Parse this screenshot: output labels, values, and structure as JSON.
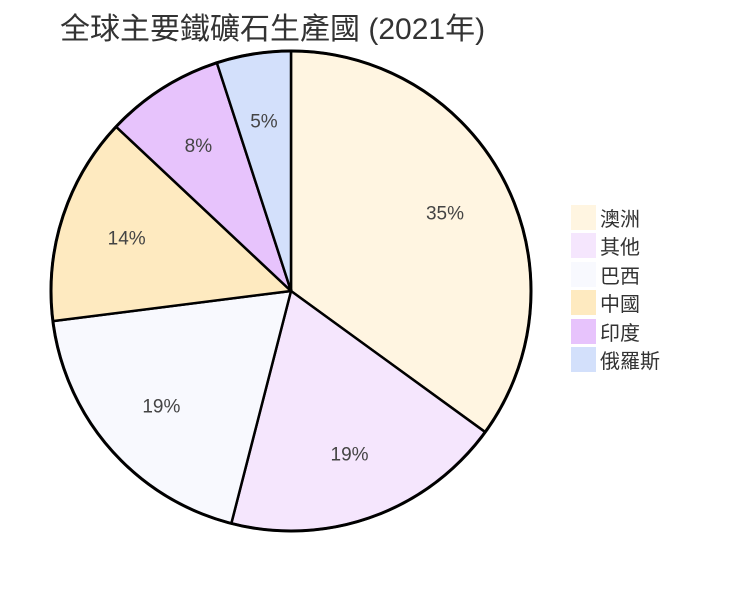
{
  "chart_data": {
    "type": "pie",
    "title": "全球主要鐵礦石生產國 (2021年)",
    "categories": [
      "澳洲",
      "其他",
      "巴西",
      "中國",
      "印度",
      "俄羅斯"
    ],
    "values": [
      35,
      19,
      19,
      14,
      8,
      5
    ],
    "labels": [
      "35%",
      "19%",
      "19%",
      "14%",
      "8%",
      "5%"
    ],
    "colors": [
      "#FFF5E1",
      "#F5E6FD",
      "#F8F9FE",
      "#FEEAC0",
      "#E7C3FC",
      "#D3E0FB"
    ],
    "start_angle": "12 o'clock, clockwise",
    "legend_position": "right"
  },
  "legend": {
    "items": [
      {
        "label": "澳洲",
        "color": "#FFF5E1"
      },
      {
        "label": "其他",
        "color": "#F5E6FD"
      },
      {
        "label": "巴西",
        "color": "#F8F9FE"
      },
      {
        "label": "中國",
        "color": "#FEEAC0"
      },
      {
        "label": "印度",
        "color": "#E7C3FC"
      },
      {
        "label": "俄羅斯",
        "color": "#D3E0FB"
      }
    ]
  }
}
